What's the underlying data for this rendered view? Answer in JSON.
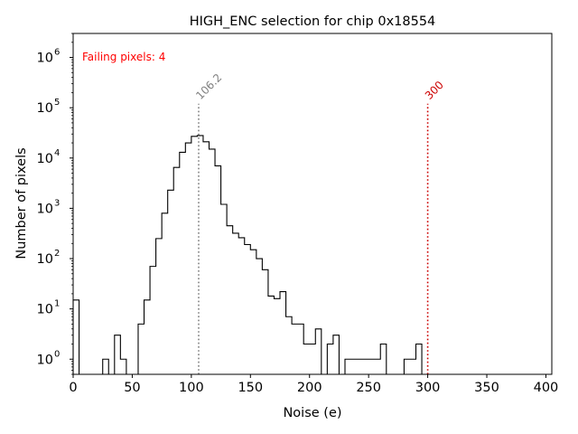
{
  "chart_data": {
    "type": "histogram",
    "title": "HIGH_ENC selection for chip 0x18554",
    "xlabel": "Noise (e)",
    "ylabel": "Number of pixels",
    "xlim": [
      0,
      405
    ],
    "ylim_log": [
      0.5,
      3000000
    ],
    "yscale": "log",
    "grid": false,
    "x_ticks": [
      "0",
      "50",
      "100",
      "150",
      "200",
      "250",
      "300",
      "350",
      "400"
    ],
    "x_tick_values": [
      0,
      50,
      100,
      150,
      200,
      250,
      300,
      350,
      400
    ],
    "y_tick_exponents": [
      0,
      1,
      2,
      3,
      4,
      5,
      6
    ],
    "y_tick_base": "10",
    "bin_width": 5,
    "bin_edges_start": 0,
    "counts": [
      15,
      0,
      0,
      0,
      0,
      1,
      0,
      3,
      1,
      0,
      0,
      5,
      15,
      70,
      250,
      800,
      2300,
      6500,
      13000,
      20000,
      27000,
      28000,
      21000,
      15000,
      7000,
      1200,
      450,
      320,
      260,
      190,
      150,
      100,
      60,
      18,
      16,
      22,
      7,
      5,
      5,
      2,
      2,
      4,
      0,
      2,
      3,
      0,
      1,
      1,
      1,
      1,
      1,
      1,
      2,
      0,
      0,
      0,
      1,
      1,
      2,
      0
    ],
    "lines": [
      {
        "label": "106.2",
        "x": 106.2,
        "color": "#808080"
      },
      {
        "label": "300",
        "x": 300,
        "color": "#cc0000"
      }
    ],
    "annotation": {
      "text": "Failing pixels: 4",
      "color": "#ff0000"
    }
  }
}
